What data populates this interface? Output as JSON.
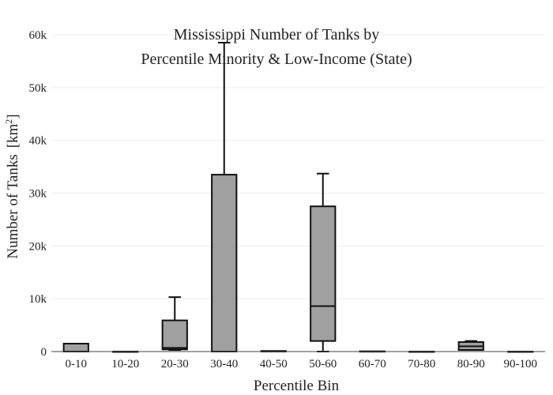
{
  "chart_data": {
    "type": "box",
    "title_lines": [
      "Mississippi Number of Tanks by",
      "Percentile Minority & Low-Income (State)"
    ],
    "xlabel": "Percentile Bin",
    "ylabel": "Number of Tanks",
    "ylabel_unit_base": "[km",
    "ylabel_unit_sup": "2",
    "ylabel_unit_end": "]",
    "ylim": [
      0,
      60000
    ],
    "yticks": [
      0,
      10000,
      20000,
      30000,
      40000,
      50000,
      60000
    ],
    "ytick_labels": [
      "0",
      "10k",
      "20k",
      "30k",
      "40k",
      "50k",
      "60k"
    ],
    "grid": true,
    "box_color": "#a0a0a0",
    "line_color": "#111111",
    "categories": [
      "0-10",
      "10-20",
      "20-30",
      "30-40",
      "40-50",
      "50-60",
      "60-70",
      "70-80",
      "80-90",
      "90-100"
    ],
    "boxes": [
      {
        "min": 0,
        "q1": 0,
        "median": 0,
        "q3": 1500,
        "max": 1500
      },
      {
        "min": 0,
        "q1": 0,
        "median": 0,
        "q3": 0,
        "max": 0
      },
      {
        "min": 300,
        "q1": 400,
        "median": 700,
        "q3": 5900,
        "max": 10300
      },
      {
        "min": 0,
        "q1": 0,
        "median": 0,
        "q3": 33500,
        "max": 58500
      },
      {
        "min": 0,
        "q1": 0,
        "median": 100,
        "q3": 100,
        "max": 100
      },
      {
        "min": 0,
        "q1": 2000,
        "median": 8600,
        "q3": 27500,
        "max": 33700
      },
      {
        "min": 0,
        "q1": 0,
        "median": 0,
        "q3": 50,
        "max": 50
      },
      {
        "min": 0,
        "q1": 0,
        "median": 0,
        "q3": 0,
        "max": 0
      },
      {
        "min": 300,
        "q1": 300,
        "median": 1000,
        "q3": 1800,
        "max": 2000
      },
      {
        "min": 0,
        "q1": 0,
        "median": 0,
        "q3": 0,
        "max": 0
      }
    ]
  }
}
